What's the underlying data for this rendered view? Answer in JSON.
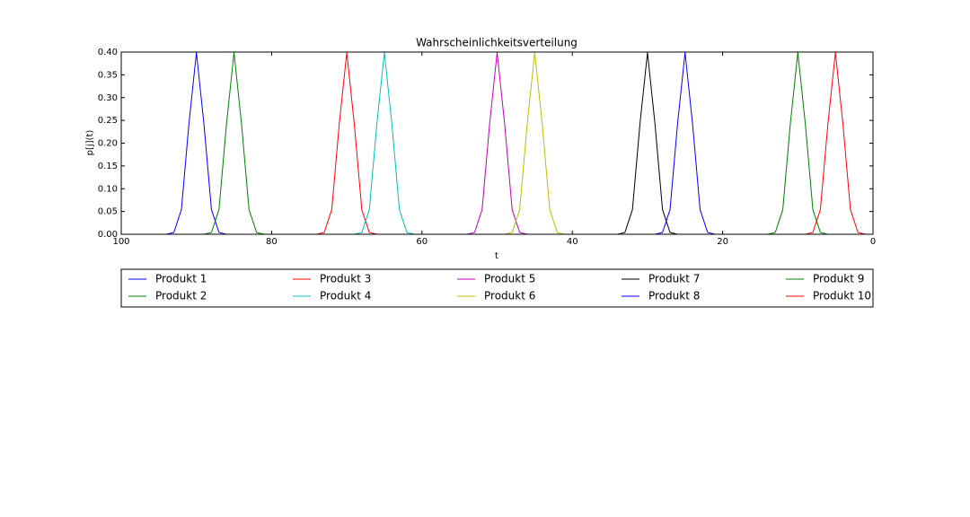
{
  "chart_data": {
    "type": "line",
    "title": "Wahrscheinlichkeitsverteilung",
    "x_label": "t",
    "y_label": "p[j](t)",
    "x": [
      0,
      1,
      2,
      3,
      4,
      5,
      6,
      7,
      8,
      9,
      10,
      11,
      12,
      13,
      14,
      15,
      16,
      17,
      18,
      19,
      20,
      21,
      22,
      23,
      24,
      25,
      26,
      27,
      28,
      29,
      30,
      31,
      32,
      33,
      34,
      35,
      36,
      37,
      38,
      39,
      40,
      41,
      42,
      43,
      44,
      45,
      46,
      47,
      48,
      49,
      50,
      51,
      52,
      53,
      54,
      55,
      56,
      57,
      58,
      59,
      60,
      61,
      62,
      63,
      64,
      65,
      66,
      67,
      68,
      69,
      70,
      71,
      72,
      73,
      74,
      75,
      76,
      77,
      78,
      79,
      80,
      81,
      82,
      83,
      84,
      85,
      86,
      87,
      88,
      89,
      90,
      91,
      92,
      93,
      94,
      95,
      96,
      97,
      98,
      99
    ],
    "xlim": [
      100,
      0
    ],
    "xticks": [
      100,
      80,
      60,
      40,
      20,
      0
    ],
    "ylim": [
      0,
      0.4
    ],
    "yticks": [
      {
        "value": 0,
        "label": "0.00"
      },
      {
        "value": 0.05,
        "label": "0.05"
      },
      {
        "value": 0.1,
        "label": "0.10"
      },
      {
        "value": 0.15,
        "label": "0.15"
      },
      {
        "value": 0.2,
        "label": "0.20"
      },
      {
        "value": 0.25,
        "label": "0.25"
      },
      {
        "value": 0.3,
        "label": "0.30"
      },
      {
        "value": 0.35,
        "label": "0.35"
      },
      {
        "value": 0.4,
        "label": "0.40"
      }
    ],
    "legend": "lower center",
    "legend_columns": 5,
    "series": [
      {
        "name": "Produkt 1",
        "color": "#0000ff",
        "values": [
          0,
          0,
          0,
          0,
          0,
          0,
          0,
          0,
          0,
          0,
          0,
          0,
          0,
          0,
          0,
          0,
          0,
          0,
          0,
          0,
          0,
          0,
          0,
          0,
          0,
          0,
          0,
          0,
          0,
          0,
          0,
          0,
          0,
          0,
          0,
          0,
          0,
          0,
          0,
          0,
          0,
          0,
          0,
          0,
          0,
          0,
          0,
          0,
          0,
          0,
          0,
          0,
          0,
          0,
          0,
          0,
          0,
          0,
          0,
          0,
          0,
          0,
          0,
          0,
          0,
          0,
          0,
          0,
          0,
          0,
          0,
          0,
          0,
          0,
          0,
          0,
          0,
          0,
          0,
          0,
          0,
          0,
          0,
          0,
          0,
          0,
          0,
          0.004,
          0.054,
          0.242,
          0.399,
          0.242,
          0.054,
          0.004,
          0,
          0,
          0,
          0,
          0,
          0
        ]
      },
      {
        "name": "Produkt 2",
        "color": "#008000",
        "values": [
          0,
          0,
          0,
          0,
          0,
          0,
          0,
          0,
          0,
          0,
          0,
          0,
          0,
          0,
          0,
          0,
          0,
          0,
          0,
          0,
          0,
          0,
          0,
          0,
          0,
          0,
          0,
          0,
          0,
          0,
          0,
          0,
          0,
          0,
          0,
          0,
          0,
          0,
          0,
          0,
          0,
          0,
          0,
          0,
          0,
          0,
          0,
          0,
          0,
          0,
          0,
          0,
          0,
          0,
          0,
          0,
          0,
          0,
          0,
          0,
          0,
          0,
          0,
          0,
          0,
          0,
          0,
          0,
          0,
          0,
          0,
          0,
          0,
          0,
          0,
          0,
          0,
          0,
          0,
          0,
          0,
          0,
          0.004,
          0.054,
          0.242,
          0.399,
          0.242,
          0.054,
          0.004,
          0,
          0,
          0,
          0,
          0,
          0,
          0,
          0,
          0,
          0,
          0
        ]
      },
      {
        "name": "Produkt 3",
        "color": "#ff0000",
        "values": [
          0,
          0,
          0,
          0,
          0,
          0,
          0,
          0,
          0,
          0,
          0,
          0,
          0,
          0,
          0,
          0,
          0,
          0,
          0,
          0,
          0,
          0,
          0,
          0,
          0,
          0,
          0,
          0,
          0,
          0,
          0,
          0,
          0,
          0,
          0,
          0,
          0,
          0,
          0,
          0,
          0,
          0,
          0,
          0,
          0,
          0,
          0,
          0,
          0,
          0,
          0,
          0,
          0,
          0,
          0,
          0,
          0,
          0,
          0,
          0,
          0,
          0,
          0,
          0,
          0,
          0,
          0,
          0.004,
          0.054,
          0.242,
          0.399,
          0.242,
          0.054,
          0.004,
          0,
          0,
          0,
          0,
          0,
          0,
          0,
          0,
          0,
          0,
          0,
          0,
          0,
          0,
          0,
          0,
          0,
          0,
          0,
          0,
          0,
          0,
          0,
          0,
          0,
          0
        ]
      },
      {
        "name": "Produkt 4",
        "color": "#00bfbf",
        "values": [
          0,
          0,
          0,
          0,
          0,
          0,
          0,
          0,
          0,
          0,
          0,
          0,
          0,
          0,
          0,
          0,
          0,
          0,
          0,
          0,
          0,
          0,
          0,
          0,
          0,
          0,
          0,
          0,
          0,
          0,
          0,
          0,
          0,
          0,
          0,
          0,
          0,
          0,
          0,
          0,
          0,
          0,
          0,
          0,
          0,
          0,
          0,
          0,
          0,
          0,
          0,
          0,
          0,
          0,
          0,
          0,
          0,
          0,
          0,
          0,
          0,
          0,
          0.004,
          0.054,
          0.242,
          0.399,
          0.242,
          0.054,
          0.004,
          0,
          0,
          0,
          0,
          0,
          0,
          0,
          0,
          0,
          0,
          0,
          0,
          0,
          0,
          0,
          0,
          0,
          0,
          0,
          0,
          0,
          0,
          0,
          0,
          0,
          0,
          0,
          0,
          0,
          0,
          0
        ]
      },
      {
        "name": "Produkt 5",
        "color": "#bf00bf",
        "values": [
          0,
          0,
          0,
          0,
          0,
          0,
          0,
          0,
          0,
          0,
          0,
          0,
          0,
          0,
          0,
          0,
          0,
          0,
          0,
          0,
          0,
          0,
          0,
          0,
          0,
          0,
          0,
          0,
          0,
          0,
          0,
          0,
          0,
          0,
          0,
          0,
          0,
          0,
          0,
          0,
          0,
          0,
          0,
          0,
          0,
          0,
          0,
          0.004,
          0.054,
          0.242,
          0.399,
          0.242,
          0.054,
          0.004,
          0,
          0,
          0,
          0,
          0,
          0,
          0,
          0,
          0,
          0,
          0,
          0,
          0,
          0,
          0,
          0,
          0,
          0,
          0,
          0,
          0,
          0,
          0,
          0,
          0,
          0,
          0,
          0,
          0,
          0,
          0,
          0,
          0,
          0,
          0,
          0,
          0,
          0,
          0,
          0,
          0,
          0,
          0,
          0,
          0,
          0
        ]
      },
      {
        "name": "Produkt 6",
        "color": "#bfbf00",
        "values": [
          0,
          0,
          0,
          0,
          0,
          0,
          0,
          0,
          0,
          0,
          0,
          0,
          0,
          0,
          0,
          0,
          0,
          0,
          0,
          0,
          0,
          0,
          0,
          0,
          0,
          0,
          0,
          0,
          0,
          0,
          0,
          0,
          0,
          0,
          0,
          0,
          0,
          0,
          0,
          0,
          0,
          0,
          0.004,
          0.054,
          0.242,
          0.399,
          0.242,
          0.054,
          0.004,
          0,
          0,
          0,
          0,
          0,
          0,
          0,
          0,
          0,
          0,
          0,
          0,
          0,
          0,
          0,
          0,
          0,
          0,
          0,
          0,
          0,
          0,
          0,
          0,
          0,
          0,
          0,
          0,
          0,
          0,
          0,
          0,
          0,
          0,
          0,
          0,
          0,
          0,
          0,
          0,
          0,
          0,
          0,
          0,
          0,
          0,
          0,
          0,
          0,
          0,
          0
        ]
      },
      {
        "name": "Produkt 7",
        "color": "#000000",
        "values": [
          0,
          0,
          0,
          0,
          0,
          0,
          0,
          0,
          0,
          0,
          0,
          0,
          0,
          0,
          0,
          0,
          0,
          0,
          0,
          0,
          0,
          0,
          0,
          0,
          0,
          0,
          0,
          0.004,
          0.054,
          0.242,
          0.399,
          0.242,
          0.054,
          0.004,
          0,
          0,
          0,
          0,
          0,
          0,
          0,
          0,
          0,
          0,
          0,
          0,
          0,
          0,
          0,
          0,
          0,
          0,
          0,
          0,
          0,
          0,
          0,
          0,
          0,
          0,
          0,
          0,
          0,
          0,
          0,
          0,
          0,
          0,
          0,
          0,
          0,
          0,
          0,
          0,
          0,
          0,
          0,
          0,
          0,
          0,
          0,
          0,
          0,
          0,
          0,
          0,
          0,
          0,
          0,
          0,
          0,
          0,
          0,
          0,
          0,
          0,
          0,
          0,
          0,
          0
        ]
      },
      {
        "name": "Produkt 8",
        "color": "#0000ff",
        "values": [
          0,
          0,
          0,
          0,
          0,
          0,
          0,
          0,
          0,
          0,
          0,
          0,
          0,
          0,
          0,
          0,
          0,
          0,
          0,
          0,
          0,
          0,
          0.004,
          0.054,
          0.242,
          0.399,
          0.242,
          0.054,
          0.004,
          0,
          0,
          0,
          0,
          0,
          0,
          0,
          0,
          0,
          0,
          0,
          0,
          0,
          0,
          0,
          0,
          0,
          0,
          0,
          0,
          0,
          0,
          0,
          0,
          0,
          0,
          0,
          0,
          0,
          0,
          0,
          0,
          0,
          0,
          0,
          0,
          0,
          0,
          0,
          0,
          0,
          0,
          0,
          0,
          0,
          0,
          0,
          0,
          0,
          0,
          0,
          0,
          0,
          0,
          0,
          0,
          0,
          0,
          0,
          0,
          0,
          0,
          0,
          0,
          0,
          0,
          0,
          0,
          0,
          0,
          0
        ]
      },
      {
        "name": "Produkt 9",
        "color": "#008000",
        "values": [
          0,
          0,
          0,
          0,
          0,
          0,
          0,
          0.004,
          0.054,
          0.242,
          0.399,
          0.242,
          0.054,
          0.004,
          0,
          0,
          0,
          0,
          0,
          0,
          0,
          0,
          0,
          0,
          0,
          0,
          0,
          0,
          0,
          0,
          0,
          0,
          0,
          0,
          0,
          0,
          0,
          0,
          0,
          0,
          0,
          0,
          0,
          0,
          0,
          0,
          0,
          0,
          0,
          0,
          0,
          0,
          0,
          0,
          0,
          0,
          0,
          0,
          0,
          0,
          0,
          0,
          0,
          0,
          0,
          0,
          0,
          0,
          0,
          0,
          0,
          0,
          0,
          0,
          0,
          0,
          0,
          0,
          0,
          0,
          0,
          0,
          0,
          0,
          0,
          0,
          0,
          0,
          0,
          0,
          0,
          0,
          0,
          0,
          0,
          0,
          0,
          0,
          0,
          0
        ]
      },
      {
        "name": "Produkt 10",
        "color": "#ff0000",
        "values": [
          0,
          0,
          0.004,
          0.054,
          0.242,
          0.399,
          0.242,
          0.054,
          0.004,
          0,
          0,
          0,
          0,
          0,
          0,
          0,
          0,
          0,
          0,
          0,
          0,
          0,
          0,
          0,
          0,
          0,
          0,
          0,
          0,
          0,
          0,
          0,
          0,
          0,
          0,
          0,
          0,
          0,
          0,
          0,
          0,
          0,
          0,
          0,
          0,
          0,
          0,
          0,
          0,
          0,
          0,
          0,
          0,
          0,
          0,
          0,
          0,
          0,
          0,
          0,
          0,
          0,
          0,
          0,
          0,
          0,
          0,
          0,
          0,
          0,
          0,
          0,
          0,
          0,
          0,
          0,
          0,
          0,
          0,
          0,
          0,
          0,
          0,
          0,
          0,
          0,
          0,
          0,
          0,
          0,
          0,
          0,
          0,
          0,
          0,
          0,
          0,
          0,
          0,
          0
        ]
      }
    ]
  }
}
